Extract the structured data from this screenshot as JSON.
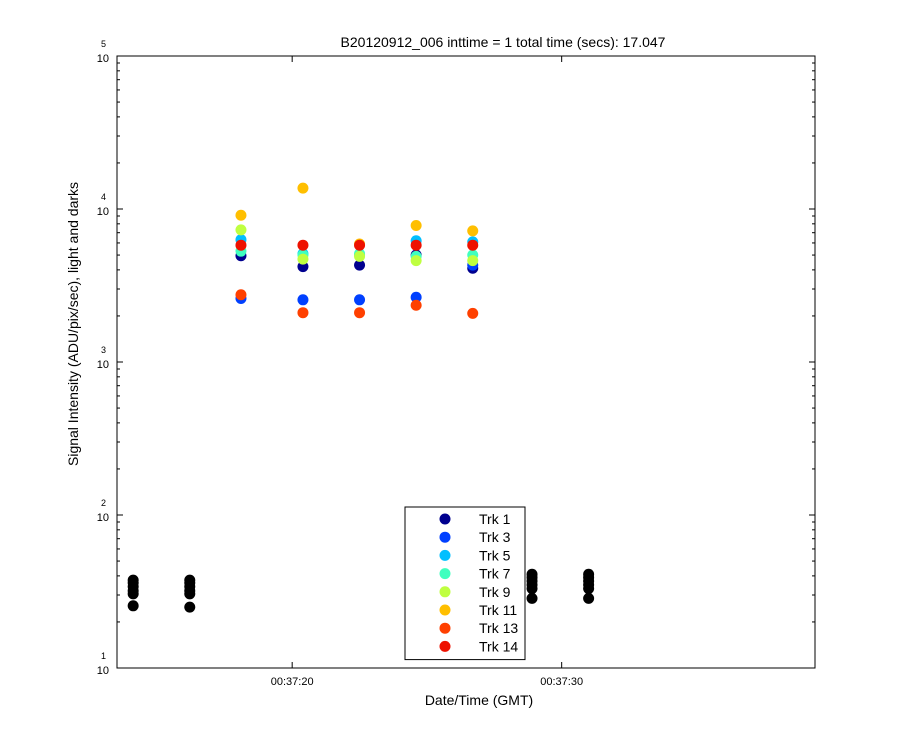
{
  "chart_data": {
    "type": "scatter",
    "title": "B20120912_006 inttime = 1 total time (secs): 17.047",
    "xlabel": "Date/Time (GMT)",
    "ylabel": "Signal Intensity (ADU/pix/sec), light and darks",
    "y_scale": "log",
    "ylim": [
      10,
      100000
    ],
    "y_ticks": [
      {
        "value": 10,
        "base": "10",
        "exp": "1"
      },
      {
        "value": 100,
        "base": "10",
        "exp": "2"
      },
      {
        "value": 1000,
        "base": "10",
        "exp": "3"
      },
      {
        "value": 10000,
        "base": "10",
        "exp": "4"
      },
      {
        "value": 100000,
        "base": "10",
        "exp": "5"
      }
    ],
    "xlim": [
      "00:37:13.5",
      "00:37:39.4"
    ],
    "x_ticks": [
      {
        "value": "00:37:20",
        "label": "00:37:20"
      },
      {
        "value": "00:37:30",
        "label": "00:37:30"
      }
    ],
    "legend_position": "bottom-center",
    "series": [
      {
        "name": "Trk 1",
        "color": "#00008f",
        "points": [
          [
            "00:37:18.1",
            4950
          ],
          [
            "00:37:20.4",
            4200
          ],
          [
            "00:37:22.5",
            4300
          ],
          [
            "00:37:24.6",
            5000
          ],
          [
            "00:37:26.7",
            4100
          ]
        ]
      },
      {
        "name": "Trk 3",
        "color": "#0040ff",
        "points": [
          [
            "00:37:18.1",
            2600
          ],
          [
            "00:37:20.4",
            2550
          ],
          [
            "00:37:22.5",
            2550
          ],
          [
            "00:37:24.6",
            2650
          ],
          [
            "00:37:26.7",
            4300
          ]
        ]
      },
      {
        "name": "Trk 5",
        "color": "#00bfff",
        "points": [
          [
            "00:37:18.1",
            6300
          ],
          [
            "00:37:20.4",
            5100
          ],
          [
            "00:37:22.5",
            5000
          ],
          [
            "00:37:24.6",
            6200
          ],
          [
            "00:37:26.7",
            6100
          ]
        ]
      },
      {
        "name": "Trk 7",
        "color": "#40ffbf",
        "points": [
          [
            "00:37:18.1",
            5300
          ],
          [
            "00:37:20.4",
            5000
          ],
          [
            "00:37:22.5",
            5100
          ],
          [
            "00:37:24.6",
            4900
          ],
          [
            "00:37:26.7",
            5000
          ]
        ]
      },
      {
        "name": "Trk 9",
        "color": "#bfff40",
        "points": [
          [
            "00:37:18.1",
            7300
          ],
          [
            "00:37:20.4",
            4700
          ],
          [
            "00:37:22.5",
            4900
          ],
          [
            "00:37:24.6",
            4600
          ],
          [
            "00:37:26.7",
            4600
          ]
        ]
      },
      {
        "name": "Trk 11",
        "color": "#ffbf00",
        "points": [
          [
            "00:37:18.1",
            9100
          ],
          [
            "00:37:20.4",
            13700
          ],
          [
            "00:37:22.5",
            5900
          ],
          [
            "00:37:24.6",
            7800
          ],
          [
            "00:37:26.7",
            7200
          ]
        ]
      },
      {
        "name": "Trk 13",
        "color": "#ff4000",
        "points": [
          [
            "00:37:18.1",
            2750
          ],
          [
            "00:37:20.4",
            2100
          ],
          [
            "00:37:22.5",
            2100
          ],
          [
            "00:37:24.6",
            2350
          ],
          [
            "00:37:26.7",
            2080
          ]
        ]
      },
      {
        "name": "Trk 14",
        "color": "#ee1100",
        "points": [
          [
            "00:37:18.1",
            5800
          ],
          [
            "00:37:20.4",
            5800
          ],
          [
            "00:37:22.5",
            5800
          ],
          [
            "00:37:24.6",
            5800
          ],
          [
            "00:37:26.7",
            5800
          ]
        ]
      }
    ],
    "darks": {
      "color": "#000000",
      "points": [
        [
          "00:37:14.1",
          25.5
        ],
        [
          "00:37:14.1",
          30.5
        ],
        [
          "00:37:14.1",
          32
        ],
        [
          "00:37:14.1",
          34
        ],
        [
          "00:37:14.1",
          36
        ],
        [
          "00:37:14.1",
          37.5
        ],
        [
          "00:37:16.2",
          25
        ],
        [
          "00:37:16.2",
          30.5
        ],
        [
          "00:37:16.2",
          32
        ],
        [
          "00:37:16.2",
          34
        ],
        [
          "00:37:16.2",
          36
        ],
        [
          "00:37:16.2",
          37.5
        ],
        [
          "00:37:28.9",
          28.5
        ],
        [
          "00:37:28.9",
          33
        ],
        [
          "00:37:28.9",
          35
        ],
        [
          "00:37:28.9",
          37
        ],
        [
          "00:37:28.9",
          39
        ],
        [
          "00:37:28.9",
          41
        ],
        [
          "00:37:31.0",
          28.5
        ],
        [
          "00:37:31.0",
          33
        ],
        [
          "00:37:31.0",
          35
        ],
        [
          "00:37:31.0",
          37
        ],
        [
          "00:37:31.0",
          39
        ],
        [
          "00:37:31.0",
          41
        ]
      ]
    }
  }
}
